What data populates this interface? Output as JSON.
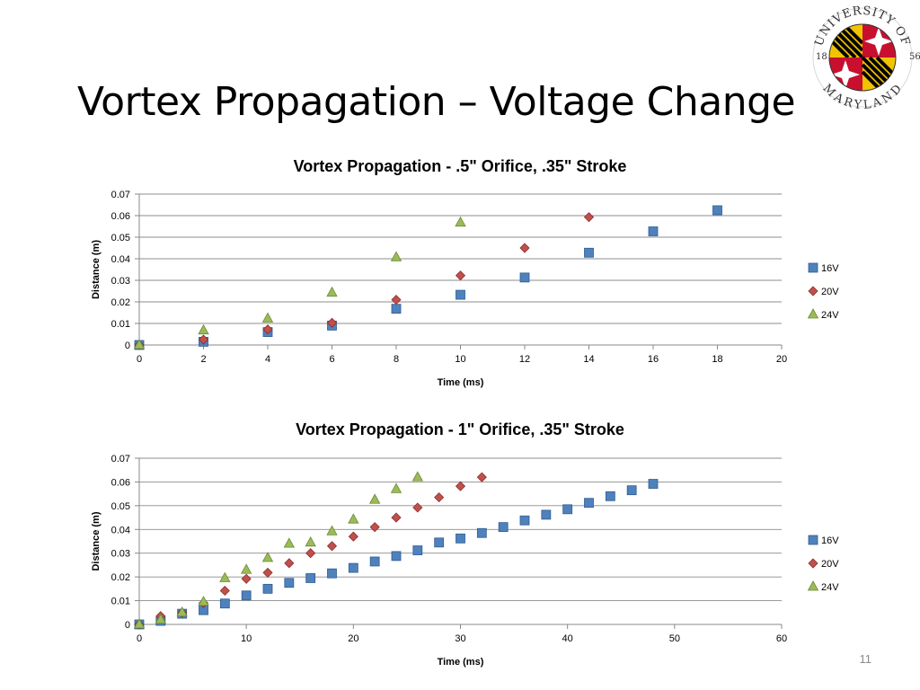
{
  "slide": {
    "title": "Vortex Propagation – Voltage Change",
    "page_number": "11"
  },
  "logo": {
    "text_top": "UNIVERSITY OF",
    "text_bottom": "MARYLAND",
    "year_left": "18",
    "year_right": "56",
    "colors": [
      "#000000",
      "#f2c400",
      "#c8102e",
      "#ffffff"
    ]
  },
  "chart_data": [
    {
      "type": "scatter",
      "title": "Vortex Propagation - .5\" Orifice, .35\" Stroke",
      "xlabel": "Time (ms)",
      "ylabel": "Distance (m)",
      "xlim": [
        0,
        20
      ],
      "ylim": [
        0,
        0.07
      ],
      "xticks": [
        "0",
        "2",
        "4",
        "6",
        "8",
        "10",
        "12",
        "14",
        "16",
        "18",
        "20"
      ],
      "yticks": [
        "0",
        "0.01",
        "0.02",
        "0.03",
        "0.04",
        "0.05",
        "0.06",
        "0.07"
      ],
      "grid": "horizontal",
      "legend_position": "right",
      "series": [
        {
          "name": "16V",
          "marker": "square",
          "color": "#4f81bd",
          "x": [
            0,
            2,
            4,
            6,
            8,
            10,
            12,
            14,
            16,
            18
          ],
          "y": [
            0,
            0.0015,
            0.006,
            0.009,
            0.0168,
            0.0233,
            0.0313,
            0.0428,
            0.0527,
            0.0625
          ]
        },
        {
          "name": "20V",
          "marker": "diamond",
          "color": "#c0504d",
          "x": [
            0,
            2,
            4,
            6,
            8,
            10,
            12,
            14
          ],
          "y": [
            0,
            0.0025,
            0.0072,
            0.0103,
            0.021,
            0.0322,
            0.045,
            0.0593
          ]
        },
        {
          "name": "24V",
          "marker": "triangle",
          "color": "#9bbb59",
          "x": [
            0,
            2,
            4,
            6,
            8,
            10
          ],
          "y": [
            0,
            0.0068,
            0.0123,
            0.0243,
            0.0407,
            0.0568
          ]
        }
      ]
    },
    {
      "type": "scatter",
      "title": "Vortex Propagation - 1\" Orifice, .35\" Stroke",
      "xlabel": "Time (ms)",
      "ylabel": "Distance (m)",
      "xlim": [
        0,
        60
      ],
      "ylim": [
        0,
        0.07
      ],
      "xticks": [
        "0",
        "10",
        "20",
        "30",
        "40",
        "50",
        "60"
      ],
      "yticks": [
        "0",
        "0.01",
        "0.02",
        "0.03",
        "0.04",
        "0.05",
        "0.06",
        "0.07"
      ],
      "grid": "horizontal",
      "legend_position": "right",
      "series": [
        {
          "name": "16V",
          "marker": "square",
          "color": "#4f81bd",
          "x": [
            0,
            2,
            4,
            6,
            8,
            10,
            12,
            14,
            16,
            18,
            20,
            22,
            24,
            26,
            28,
            30,
            32,
            34,
            36,
            38,
            40,
            42,
            44,
            46,
            48
          ],
          "y": [
            0,
            0.0015,
            0.0045,
            0.006,
            0.0088,
            0.0122,
            0.015,
            0.0175,
            0.0195,
            0.0215,
            0.0238,
            0.0265,
            0.0288,
            0.0312,
            0.0345,
            0.0362,
            0.0385,
            0.041,
            0.0438,
            0.0462,
            0.0485,
            0.0512,
            0.054,
            0.0565,
            0.0592
          ]
        },
        {
          "name": "20V",
          "marker": "diamond",
          "color": "#c0504d",
          "x": [
            0,
            2,
            4,
            6,
            8,
            10,
            12,
            14,
            16,
            18,
            20,
            22,
            24,
            26,
            28,
            30,
            32
          ],
          "y": [
            0,
            0.0035,
            0.005,
            0.009,
            0.0142,
            0.0192,
            0.0218,
            0.0258,
            0.03,
            0.033,
            0.037,
            0.041,
            0.045,
            0.0492,
            0.0535,
            0.0582,
            0.062
          ]
        },
        {
          "name": "24V",
          "marker": "triangle",
          "color": "#9bbb59",
          "x": [
            0,
            2,
            4,
            6,
            8,
            10,
            12,
            14,
            16,
            18,
            20,
            22,
            24,
            26
          ],
          "y": [
            0,
            0.002,
            0.005,
            0.0095,
            0.0195,
            0.023,
            0.028,
            0.034,
            0.0345,
            0.0392,
            0.0442,
            0.0525,
            0.057,
            0.062
          ]
        }
      ]
    }
  ]
}
